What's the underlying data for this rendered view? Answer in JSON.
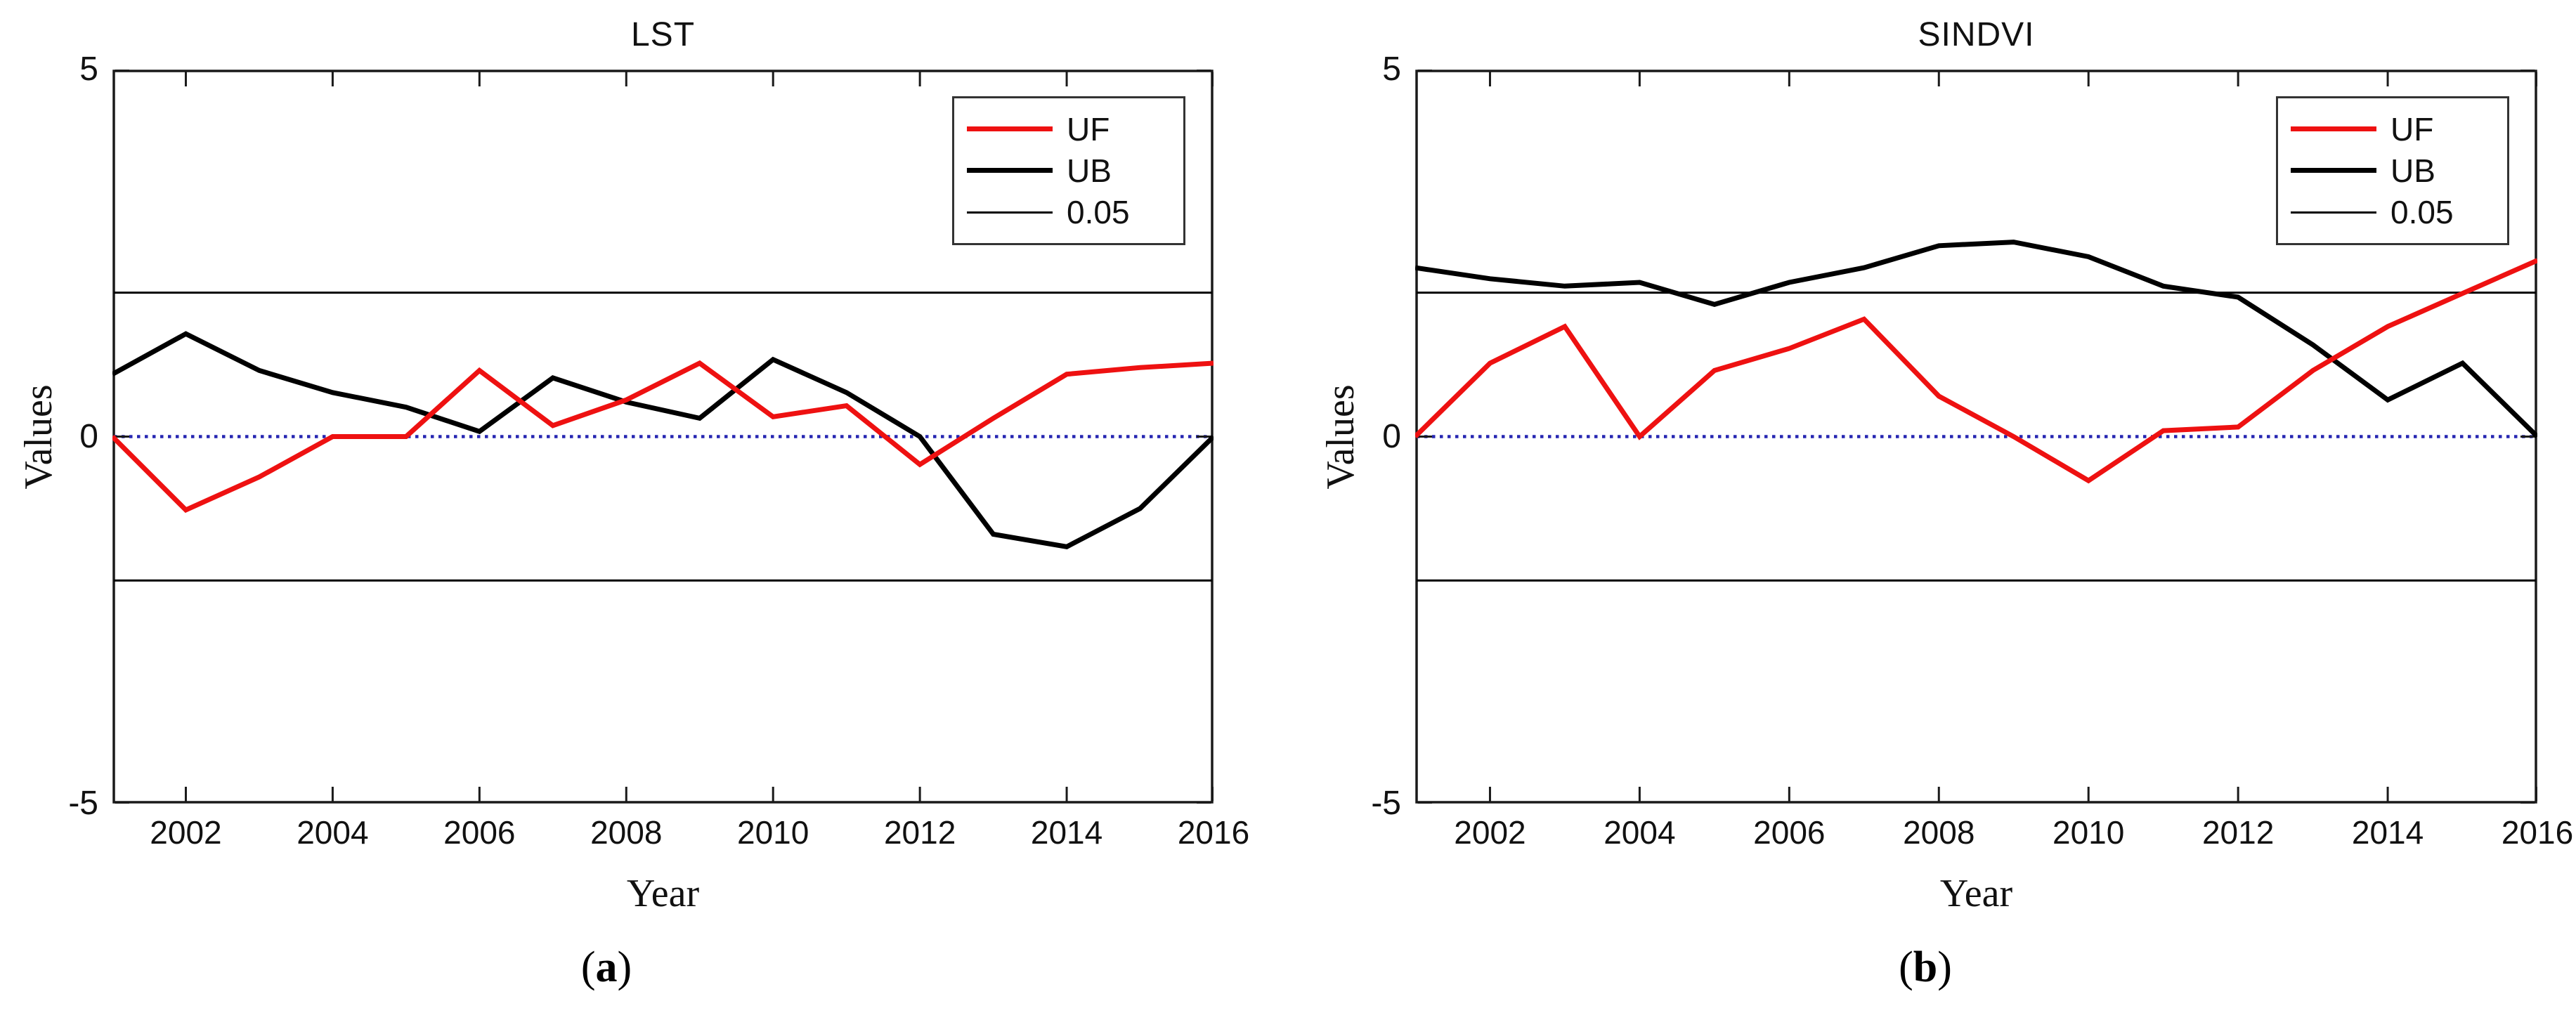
{
  "figure": {
    "background": "#ffffff",
    "colors": {
      "uf_line": "#ee1111",
      "ub_line": "#000000",
      "sig_line": "#000000",
      "zero_line": "#2626b2",
      "axis": "#1a1a1a"
    }
  },
  "chart_data": [
    {
      "type": "line",
      "title": "LST",
      "xlabel": "Year",
      "ylabel": "Values",
      "caption_open": "(",
      "caption_letter": "a",
      "caption_close": ")",
      "xlim": [
        2001,
        2016
      ],
      "ylim": [
        -5,
        5
      ],
      "grid": false,
      "legend_position": "top-right",
      "x_ticks": [
        "2002",
        "2004",
        "2006",
        "2008",
        "2010",
        "2012",
        "2014",
        "2016"
      ],
      "y_ticks": [
        "5",
        "0",
        "-5"
      ],
      "y_tick_values": [
        5,
        0,
        -5
      ],
      "sig_level": 1.96,
      "zero_level": 0,
      "x": [
        2001,
        2002,
        2003,
        2004,
        2005,
        2006,
        2007,
        2008,
        2009,
        2010,
        2011,
        2012,
        2013,
        2014,
        2015,
        2016
      ],
      "series": [
        {
          "name": "UB",
          "color": "#000000",
          "width": 7,
          "values": [
            0.85,
            1.4,
            0.9,
            0.6,
            0.4,
            0.07,
            0.8,
            0.47,
            0.25,
            1.05,
            0.6,
            0.0,
            -1.33,
            -1.5,
            -0.98,
            0.0
          ]
        },
        {
          "name": "UF",
          "color": "#ee1111",
          "width": 7,
          "values": [
            0.0,
            -1.0,
            -0.55,
            0.0,
            0.0,
            0.9,
            0.15,
            0.5,
            1.0,
            0.27,
            0.42,
            -0.38,
            0.25,
            0.85,
            0.94,
            1.0
          ]
        }
      ],
      "legend": [
        {
          "label": "UF",
          "color": "#ee1111",
          "thickness": 7
        },
        {
          "label": "UB",
          "color": "#000000",
          "thickness": 7
        },
        {
          "label": "0.05",
          "color": "#000000",
          "thickness": 3
        }
      ]
    },
    {
      "type": "line",
      "title": "SINDVI",
      "xlabel": "Year",
      "ylabel": "Values",
      "caption_open": "(",
      "caption_letter": "b",
      "caption_close": ")",
      "xlim": [
        2001,
        2016
      ],
      "ylim": [
        -5,
        5
      ],
      "grid": false,
      "legend_position": "top-right",
      "x_ticks": [
        "2002",
        "2004",
        "2006",
        "2008",
        "2010",
        "2012",
        "2014",
        "2016"
      ],
      "y_ticks": [
        "5",
        "0",
        "-5"
      ],
      "y_tick_values": [
        5,
        0,
        -5
      ],
      "sig_level": 1.96,
      "zero_level": 0,
      "x": [
        2001,
        2002,
        2003,
        2004,
        2005,
        2006,
        2007,
        2008,
        2009,
        2010,
        2011,
        2012,
        2013,
        2014,
        2015,
        2016
      ],
      "series": [
        {
          "name": "UB",
          "color": "#000000",
          "width": 7,
          "values": [
            2.3,
            2.15,
            2.05,
            2.1,
            1.8,
            2.1,
            2.3,
            2.6,
            2.65,
            2.45,
            2.05,
            1.9,
            1.25,
            0.5,
            1.0,
            0.0
          ]
        },
        {
          "name": "UF",
          "color": "#ee1111",
          "width": 7,
          "values": [
            0.0,
            1.0,
            1.5,
            0.0,
            0.9,
            1.2,
            1.6,
            0.55,
            0.0,
            -0.6,
            0.08,
            0.13,
            0.9,
            1.5,
            1.95,
            2.4
          ]
        }
      ],
      "legend": [
        {
          "label": "UF",
          "color": "#ee1111",
          "thickness": 7
        },
        {
          "label": "UB",
          "color": "#000000",
          "thickness": 7
        },
        {
          "label": "0.05",
          "color": "#000000",
          "thickness": 3
        }
      ]
    }
  ]
}
